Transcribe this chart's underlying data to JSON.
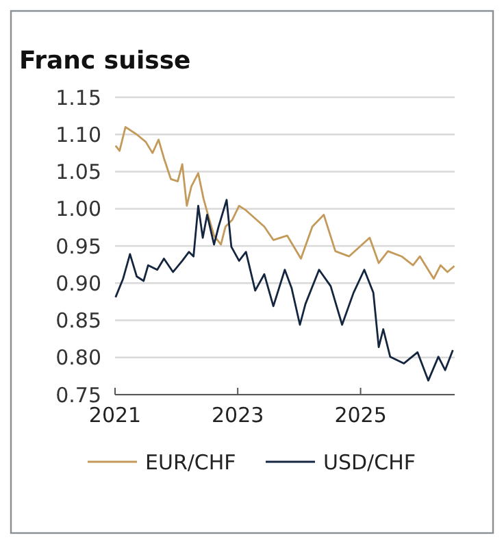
{
  "chart_data": {
    "type": "line",
    "title": "Franc suisse",
    "xlim": [
      "2021-01-01",
      "2026-07-15"
    ],
    "xticks": [
      "2021",
      "2023",
      "2025"
    ],
    "ylim": [
      0.75,
      1.15
    ],
    "yticks": [
      {
        "value": 0.75,
        "label": "0.75"
      },
      {
        "value": 0.8,
        "label": "0.80"
      },
      {
        "value": 0.85,
        "label": "0.85"
      },
      {
        "value": 0.9,
        "label": "0.90"
      },
      {
        "value": 0.95,
        "label": "0.95"
      },
      {
        "value": 1.0,
        "label": "1.00"
      },
      {
        "value": 1.05,
        "label": "1.05"
      },
      {
        "value": 1.1,
        "label": "1.10"
      },
      {
        "value": 1.15,
        "label": "1.15"
      }
    ],
    "grid": "y",
    "legend": "bottom",
    "marker": "none",
    "line_style": "solid",
    "series": [
      {
        "name": "EUR/CHF",
        "color": "#c49a5a",
        "x": [
          "2021-01-04",
          "2021-01-28",
          "2021-03-04",
          "2021-05-10",
          "2021-07-03",
          "2021-08-12",
          "2021-09-17",
          "2021-10-19",
          "2021-11-29",
          "2022-01-09",
          "2022-02-05",
          "2022-03-04",
          "2022-03-31",
          "2022-05-11",
          "2022-06-12",
          "2022-07-17",
          "2022-08-13",
          "2022-09-23",
          "2022-10-20",
          "2022-11-29",
          "2023-01-09",
          "2023-02-19",
          "2023-06-08",
          "2023-08-01",
          "2023-10-22",
          "2024-01-12",
          "2024-03-20",
          "2024-05-27",
          "2024-08-04",
          "2024-10-24",
          "2025-02-24",
          "2025-04-19",
          "2025-06-13",
          "2025-09-02",
          "2025-11-09",
          "2025-12-20",
          "2026-03-12",
          "2026-04-22",
          "2026-06-02",
          "2026-07-13"
        ],
        "values": [
          1.085,
          1.078,
          1.11,
          1.1,
          1.09,
          1.075,
          1.093,
          1.068,
          1.04,
          1.037,
          1.06,
          1.004,
          1.03,
          1.048,
          1.013,
          0.985,
          0.964,
          0.952,
          0.976,
          0.985,
          1.004,
          0.998,
          0.976,
          0.958,
          0.964,
          0.933,
          0.976,
          0.992,
          0.943,
          0.936,
          0.961,
          0.927,
          0.943,
          0.936,
          0.924,
          0.936,
          0.906,
          0.924,
          0.915,
          0.923
        ]
      },
      {
        "name": "USD/CHF",
        "color": "#14263f",
        "x": [
          "2021-01-04",
          "2021-02-18",
          "2021-03-31",
          "2021-05-10",
          "2021-06-20",
          "2021-07-17",
          "2021-09-09",
          "2021-10-19",
          "2021-12-12",
          "2022-02-05",
          "2022-03-17",
          "2022-04-13",
          "2022-05-11",
          "2022-06-07",
          "2022-07-03",
          "2022-08-13",
          "2022-09-09",
          "2022-10-27",
          "2022-11-24",
          "2023-01-09",
          "2023-02-19",
          "2023-04-15",
          "2023-06-08",
          "2023-08-01",
          "2023-10-08",
          "2023-11-18",
          "2024-01-06",
          "2024-02-08",
          "2024-04-29",
          "2024-07-07",
          "2024-09-13",
          "2024-11-20",
          "2025-01-23",
          "2025-03-18",
          "2025-04-19",
          "2025-05-16",
          "2025-06-26",
          "2025-09-16",
          "2025-12-06",
          "2026-02-08",
          "2026-04-09",
          "2026-05-19",
          "2026-07-04"
        ],
        "values": [
          0.881,
          0.906,
          0.939,
          0.909,
          0.903,
          0.924,
          0.918,
          0.933,
          0.915,
          0.93,
          0.942,
          0.936,
          1.004,
          0.961,
          0.992,
          0.952,
          0.976,
          1.012,
          0.949,
          0.93,
          0.942,
          0.89,
          0.912,
          0.869,
          0.918,
          0.893,
          0.844,
          0.872,
          0.918,
          0.896,
          0.844,
          0.887,
          0.918,
          0.887,
          0.814,
          0.838,
          0.801,
          0.792,
          0.807,
          0.769,
          0.801,
          0.783,
          0.81
        ]
      }
    ]
  }
}
